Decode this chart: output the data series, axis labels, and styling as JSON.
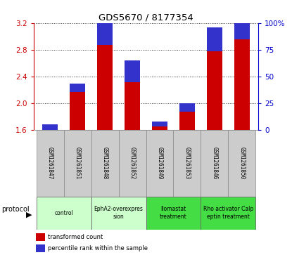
{
  "title": "GDS5670 / 8177354",
  "samples": [
    "GSM1261847",
    "GSM1261851",
    "GSM1261848",
    "GSM1261852",
    "GSM1261849",
    "GSM1261853",
    "GSM1261846",
    "GSM1261850"
  ],
  "transformed_count": [
    1.605,
    2.17,
    2.87,
    2.32,
    1.65,
    1.875,
    2.78,
    2.95
  ],
  "percentile_rank": [
    5,
    8,
    25,
    20,
    5,
    8,
    22,
    25
  ],
  "ylim_left": [
    1.6,
    3.2
  ],
  "ylim_right": [
    0,
    100
  ],
  "yticks_left": [
    1.6,
    2.0,
    2.4,
    2.8,
    3.2
  ],
  "yticks_right": [
    0,
    25,
    50,
    75,
    100
  ],
  "bar_bottom": 1.6,
  "groups": [
    {
      "label": "control",
      "indices": [
        0,
        1
      ],
      "color": "#ccffcc",
      "text_color": "black"
    },
    {
      "label": "EphA2-overexpres\nsion",
      "indices": [
        2,
        3
      ],
      "color": "#ccffcc",
      "text_color": "black"
    },
    {
      "label": "llomastat\ntreatment",
      "indices": [
        4,
        5
      ],
      "color": "#44dd44",
      "text_color": "black"
    },
    {
      "label": "Rho activator Calp\neptin treatment",
      "indices": [
        6,
        7
      ],
      "color": "#44dd44",
      "text_color": "black"
    }
  ],
  "legend_items": [
    {
      "label": "transformed count",
      "color": "#cc0000"
    },
    {
      "label": "percentile rank within the sample",
      "color": "#0000cc"
    }
  ],
  "protocol_label": "protocol",
  "bar_color_red": "#cc0000",
  "bar_color_blue": "#3333cc",
  "bg_plot": "#ffffff",
  "sample_cell_color": "#cccccc",
  "left_tick_color": "#cc0000",
  "right_tick_color": "#0000cc"
}
